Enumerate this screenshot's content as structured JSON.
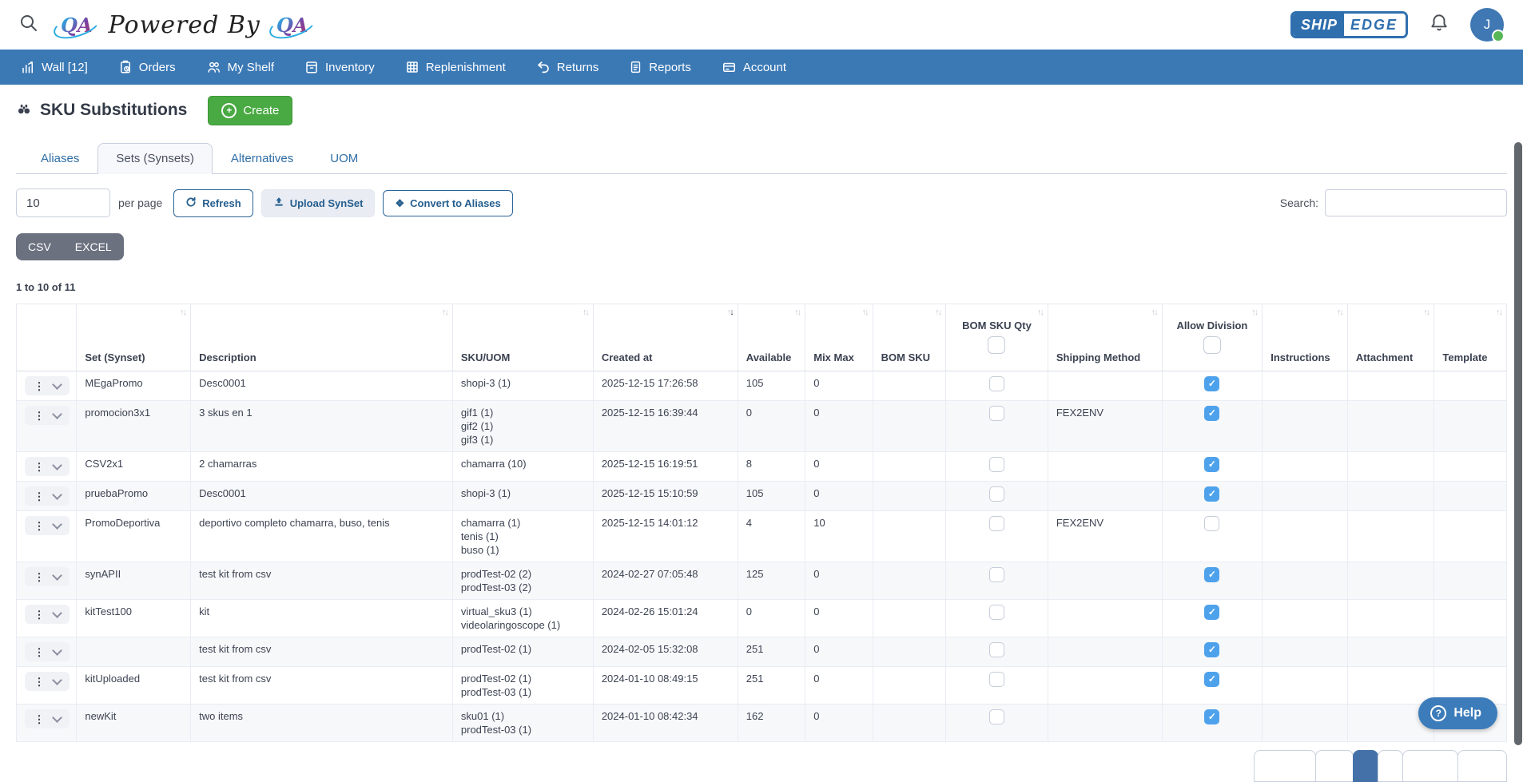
{
  "topbar": {
    "brand_text": "Powered By",
    "qa_logo_text": "QA",
    "shipedge": {
      "ship": "SHIP",
      "edge": "EDGE"
    },
    "avatar_initial": "J"
  },
  "nav": {
    "items": [
      {
        "label": "Wall [12]",
        "icon": "chart"
      },
      {
        "label": "Orders",
        "icon": "clipboard-clock"
      },
      {
        "label": "My Shelf",
        "icon": "people"
      },
      {
        "label": "Inventory",
        "icon": "archive-box"
      },
      {
        "label": "Replenishment",
        "icon": "grid"
      },
      {
        "label": "Returns",
        "icon": "undo-arrow"
      },
      {
        "label": "Reports",
        "icon": "document"
      },
      {
        "label": "Account",
        "icon": "credit-card"
      }
    ]
  },
  "page": {
    "title": "SKU Substitutions",
    "create_label": "Create"
  },
  "tabs": {
    "items": [
      {
        "label": "Aliases",
        "active": false
      },
      {
        "label": "Sets (Synsets)",
        "active": true
      },
      {
        "label": "Alternatives",
        "active": false
      },
      {
        "label": "UOM",
        "active": false
      }
    ]
  },
  "controls": {
    "per_page_value": "10",
    "per_page_label": "per page",
    "refresh_label": "Refresh",
    "upload_label": "Upload SynSet",
    "convert_label": "Convert to Aliases",
    "search_label": "Search:",
    "search_value": ""
  },
  "export": {
    "csv": "CSV",
    "excel": "EXCEL"
  },
  "summary": "1 to 10 of 11",
  "table": {
    "columns": [
      {
        "label": "",
        "sortable": false
      },
      {
        "label": "Set (Synset)",
        "sortable": true
      },
      {
        "label": "Description",
        "sortable": true
      },
      {
        "label": "SKU/UOM",
        "sortable": true
      },
      {
        "label": "Created at",
        "sortable": true,
        "sorted": "desc"
      },
      {
        "label": "Available",
        "sortable": true
      },
      {
        "label": "Mix Max",
        "sortable": true
      },
      {
        "label": "BOM SKU",
        "sortable": true
      },
      {
        "label": "BOM SKU Qty",
        "sortable": true,
        "header_checkbox": true
      },
      {
        "label": "Shipping Method",
        "sortable": true
      },
      {
        "label": "Allow Division",
        "sortable": true,
        "header_checkbox": true
      },
      {
        "label": "Instructions",
        "sortable": true
      },
      {
        "label": "Attachment",
        "sortable": true
      },
      {
        "label": "Template",
        "sortable": true
      }
    ],
    "rows": [
      {
        "set": "MEgaPromo",
        "description": "Desc0001",
        "skus": [
          "shopi-3 (1)"
        ],
        "created_at": "2025-12-15 17:26:58",
        "available": "105",
        "mix_max": "0",
        "bom_sku": "",
        "bom_sku_qty_checked": false,
        "shipping_method": "",
        "allow_division": true,
        "instructions": "",
        "attachment": "",
        "template": ""
      },
      {
        "set": "promocion3x1",
        "description": "3 skus en 1",
        "skus": [
          "gif1 (1)",
          "gif2 (1)",
          "gif3 (1)"
        ],
        "created_at": "2025-12-15 16:39:44",
        "available": "0",
        "mix_max": "0",
        "bom_sku": "",
        "bom_sku_qty_checked": false,
        "shipping_method": "FEX2ENV",
        "allow_division": true,
        "instructions": "",
        "attachment": "",
        "template": ""
      },
      {
        "set": "CSV2x1",
        "description": "2 chamarras",
        "skus": [
          "chamarra (10)"
        ],
        "created_at": "2025-12-15 16:19:51",
        "available": "8",
        "mix_max": "0",
        "bom_sku": "",
        "bom_sku_qty_checked": false,
        "shipping_method": "",
        "allow_division": true,
        "instructions": "",
        "attachment": "",
        "template": ""
      },
      {
        "set": "pruebaPromo",
        "description": "Desc0001",
        "skus": [
          "shopi-3 (1)"
        ],
        "created_at": "2025-12-15 15:10:59",
        "available": "105",
        "mix_max": "0",
        "bom_sku": "",
        "bom_sku_qty_checked": false,
        "shipping_method": "",
        "allow_division": true,
        "instructions": "",
        "attachment": "",
        "template": ""
      },
      {
        "set": "PromoDeportiva",
        "description": "deportivo completo chamarra, buso, tenis",
        "skus": [
          "chamarra (1)",
          "tenis (1)",
          "buso (1)"
        ],
        "created_at": "2025-12-15 14:01:12",
        "available": "4",
        "mix_max": "10",
        "bom_sku": "",
        "bom_sku_qty_checked": false,
        "shipping_method": "FEX2ENV",
        "allow_division": false,
        "instructions": "",
        "attachment": "",
        "template": ""
      },
      {
        "set": "synAPII",
        "description": "test kit from csv",
        "skus": [
          "prodTest-02 (2)",
          "prodTest-03 (2)"
        ],
        "created_at": "2024-02-27 07:05:48",
        "available": "125",
        "mix_max": "0",
        "bom_sku": "",
        "bom_sku_qty_checked": false,
        "shipping_method": "",
        "allow_division": true,
        "instructions": "",
        "attachment": "",
        "template": ""
      },
      {
        "set": "kitTest100",
        "description": "kit",
        "skus": [
          "virtual_sku3 (1)",
          "videolaringoscope (1)"
        ],
        "created_at": "2024-02-26 15:01:24",
        "available": "0",
        "mix_max": "0",
        "bom_sku": "",
        "bom_sku_qty_checked": false,
        "shipping_method": "",
        "allow_division": true,
        "instructions": "",
        "attachment": "",
        "template": ""
      },
      {
        "set": "",
        "description": "test kit from csv",
        "skus": [
          "prodTest-02 (1)"
        ],
        "created_at": "2024-02-05 15:32:08",
        "available": "251",
        "mix_max": "0",
        "bom_sku": "",
        "bom_sku_qty_checked": false,
        "shipping_method": "",
        "allow_division": true,
        "instructions": "",
        "attachment": "",
        "template": ""
      },
      {
        "set": "kitUploaded",
        "description": "test kit from csv",
        "skus": [
          "prodTest-02 (1)",
          "prodTest-03 (1)"
        ],
        "created_at": "2024-01-10 08:49:15",
        "available": "251",
        "mix_max": "0",
        "bom_sku": "",
        "bom_sku_qty_checked": false,
        "shipping_method": "",
        "allow_division": true,
        "instructions": "",
        "attachment": "",
        "template": ""
      },
      {
        "set": "newKit",
        "description": "two items",
        "skus": [
          "sku01 (1)",
          "prodTest-03 (1)"
        ],
        "created_at": "2024-01-10 08:42:34",
        "available": "162",
        "mix_max": "0",
        "bom_sku": "",
        "bom_sku_qty_checked": false,
        "shipping_method": "",
        "allow_division": true,
        "instructions": "",
        "attachment": "",
        "template": ""
      }
    ]
  },
  "pagination": {
    "cell_count": 6,
    "active_cell_index": 2
  },
  "help": {
    "label": "Help"
  },
  "colors": {
    "nav_blue": "#3b79b5",
    "create_green": "#49a942",
    "checkbox_checked_blue": "#4ea2ec",
    "button_blue": "#255e8e",
    "export_gray": "#6c7180",
    "pagination_active_blue": "#4472a8",
    "help_blue": "#3c7cba",
    "presence_green": "#57b757"
  }
}
